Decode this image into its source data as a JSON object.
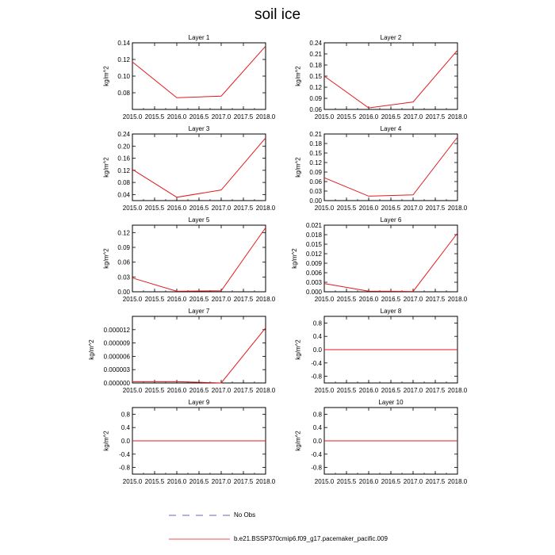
{
  "figure": {
    "title": "soil ice",
    "legend": [
      {
        "label": "No Obs",
        "color": "#3a3aa0",
        "style": "dashed"
      },
      {
        "label": "b.e21.BSSP370cmip6.f09_g17.pacemaker_pacific.009",
        "color": "#e31a1c",
        "style": "solid"
      }
    ],
    "line_color": "#e31a1c"
  },
  "chart_data": [
    {
      "type": "line",
      "title": "Layer 1",
      "ylabel": "kg/m^2",
      "x": [
        2015.0,
        2016.0,
        2017.0,
        2018.0
      ],
      "xlim": [
        2015.0,
        2018.0
      ],
      "xticks": [
        "2015.0",
        "2015.5",
        "2016.0",
        "2016.5",
        "2017.0",
        "2017.5",
        "2018.0"
      ],
      "ylim": [
        0.06,
        0.14
      ],
      "yticks": [
        "0.08",
        "0.10",
        "0.12",
        "0.14"
      ],
      "series": [
        {
          "values": [
            0.117,
            0.074,
            0.076,
            0.136
          ]
        }
      ]
    },
    {
      "type": "line",
      "title": "Layer 2",
      "ylabel": "kg/m^2",
      "x": [
        2015.0,
        2016.0,
        2017.0,
        2018.0
      ],
      "xlim": [
        2015.0,
        2018.0
      ],
      "xticks": [
        "2015.0",
        "2015.5",
        "2016.0",
        "2016.5",
        "2017.0",
        "2017.5",
        "2018.0"
      ],
      "ylim": [
        0.06,
        0.24
      ],
      "yticks": [
        "0.06",
        "0.09",
        "0.12",
        "0.15",
        "0.18",
        "0.21",
        "0.24"
      ],
      "series": [
        {
          "values": [
            0.15,
            0.064,
            0.08,
            0.22
          ]
        }
      ]
    },
    {
      "type": "line",
      "title": "Layer 3",
      "ylabel": "kg/m^2",
      "x": [
        2015.0,
        2016.0,
        2017.0,
        2018.0
      ],
      "xlim": [
        2015.0,
        2018.0
      ],
      "xticks": [
        "2015.0",
        "2015.5",
        "2016.0",
        "2016.5",
        "2017.0",
        "2017.5",
        "2018.0"
      ],
      "ylim": [
        0.02,
        0.24
      ],
      "yticks": [
        "0.04",
        "0.08",
        "0.12",
        "0.16",
        "0.20",
        "0.24"
      ],
      "series": [
        {
          "values": [
            0.123,
            0.031,
            0.055,
            0.227
          ]
        }
      ]
    },
    {
      "type": "line",
      "title": "Layer 4",
      "ylabel": "kg/m^2",
      "x": [
        2015.0,
        2016.0,
        2017.0,
        2018.0
      ],
      "xlim": [
        2015.0,
        2018.0
      ],
      "xticks": [
        "2015.0",
        "2015.5",
        "2016.0",
        "2016.5",
        "2017.0",
        "2017.5",
        "2018.0"
      ],
      "ylim": [
        0.0,
        0.21
      ],
      "yticks": [
        "0.00",
        "0.03",
        "0.06",
        "0.09",
        "0.12",
        "0.15",
        "0.18",
        "0.21"
      ],
      "series": [
        {
          "values": [
            0.072,
            0.014,
            0.018,
            0.2
          ]
        }
      ]
    },
    {
      "type": "line",
      "title": "Layer 5",
      "ylabel": "kg/m^2",
      "x": [
        2015.0,
        2016.0,
        2017.0,
        2018.0
      ],
      "xlim": [
        2015.0,
        2018.0
      ],
      "xticks": [
        "2015.0",
        "2015.5",
        "2016.0",
        "2016.5",
        "2017.0",
        "2017.5",
        "2018.0"
      ],
      "ylim": [
        0.0,
        0.135
      ],
      "yticks": [
        "0.00",
        "0.03",
        "0.06",
        "0.09",
        "0.12"
      ],
      "series": [
        {
          "values": [
            0.028,
            0.001,
            0.002,
            0.13
          ]
        }
      ]
    },
    {
      "type": "line",
      "title": "Layer 6",
      "ylabel": "kg/m^2",
      "x": [
        2015.0,
        2016.0,
        2017.0,
        2018.0
      ],
      "xlim": [
        2015.0,
        2018.0
      ],
      "xticks": [
        "2015.0",
        "2015.5",
        "2016.0",
        "2016.5",
        "2017.0",
        "2017.5",
        "2018.0"
      ],
      "ylim": [
        0.0,
        0.021
      ],
      "yticks": [
        "0.000",
        "0.003",
        "0.006",
        "0.009",
        "0.012",
        "0.015",
        "0.018",
        "0.021"
      ],
      "series": [
        {
          "values": [
            0.0026,
            0.0002,
            0.0001,
            0.0185
          ]
        }
      ]
    },
    {
      "type": "line",
      "title": "Layer 7",
      "ylabel": "kg/m^2",
      "x": [
        2015.0,
        2016.0,
        2017.0,
        2018.0
      ],
      "xlim": [
        2015.0,
        2018.0
      ],
      "xticks": [
        "2015.0",
        "2015.5",
        "2016.0",
        "2016.5",
        "2017.0",
        "2017.5",
        "2018.0"
      ],
      "ylim": [
        0.0,
        1.5e-05
      ],
      "yticks": [
        "0.000000",
        "0.000003",
        "0.000006",
        "0.000009",
        "0.000012"
      ],
      "series": [
        {
          "values": [
            3e-07,
            3e-07,
            0.0,
            1.24e-05
          ]
        }
      ]
    },
    {
      "type": "line",
      "title": "Layer 8",
      "ylabel": "kg/m^2",
      "x": [
        2015.0,
        2016.0,
        2017.0,
        2018.0
      ],
      "xlim": [
        2015.0,
        2018.0
      ],
      "xticks": [
        "2015.0",
        "2015.5",
        "2016.0",
        "2016.5",
        "2017.0",
        "2017.5",
        "2018.0"
      ],
      "ylim": [
        -1.0,
        1.0
      ],
      "yticks": [
        "-0.8",
        "-0.4",
        "0.0",
        "0.4",
        "0.8"
      ],
      "series": [
        {
          "values": [
            0.0,
            0.0,
            0.0,
            0.0
          ]
        }
      ]
    },
    {
      "type": "line",
      "title": "Layer 9",
      "ylabel": "kg/m^2",
      "x": [
        2015.0,
        2016.0,
        2017.0,
        2018.0
      ],
      "xlim": [
        2015.0,
        2018.0
      ],
      "xticks": [
        "2015.0",
        "2015.5",
        "2016.0",
        "2016.5",
        "2017.0",
        "2017.5",
        "2018.0"
      ],
      "ylim": [
        -1.0,
        1.0
      ],
      "yticks": [
        "-0.8",
        "-0.4",
        "0.0",
        "0.4",
        "0.8"
      ],
      "series": [
        {
          "values": [
            0.0,
            0.0,
            0.0,
            0.0
          ]
        }
      ]
    },
    {
      "type": "line",
      "title": "Layer 10",
      "ylabel": "kg/m^2",
      "x": [
        2015.0,
        2016.0,
        2017.0,
        2018.0
      ],
      "xlim": [
        2015.0,
        2018.0
      ],
      "xticks": [
        "2015.0",
        "2015.5",
        "2016.0",
        "2016.5",
        "2017.0",
        "2017.5",
        "2018.0"
      ],
      "ylim": [
        -1.0,
        1.0
      ],
      "yticks": [
        "-0.8",
        "-0.4",
        "0.0",
        "0.4",
        "0.8"
      ],
      "series": [
        {
          "values": [
            0.0,
            0.0,
            0.0,
            0.0
          ]
        }
      ]
    }
  ]
}
